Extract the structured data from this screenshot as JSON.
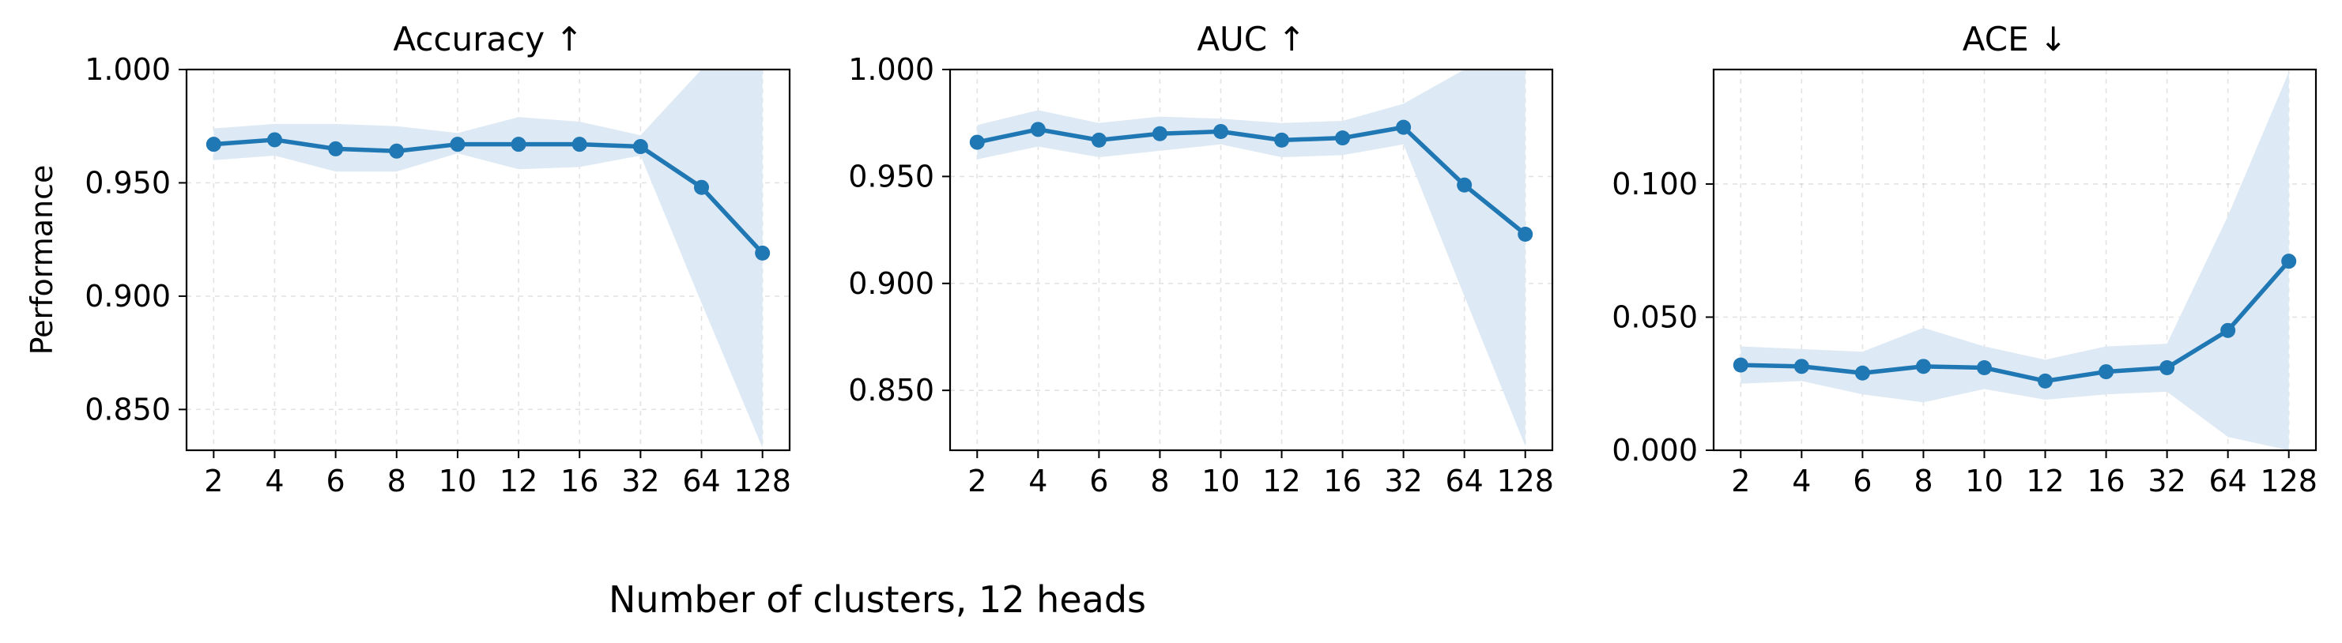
{
  "figure": {
    "xlabel": "Number of clusters, 12 heads"
  },
  "chart_data": [
    {
      "type": "line",
      "title": "Accuracy ↑",
      "ylabel": "Performance",
      "xlabel": "",
      "categories": [
        "2",
        "4",
        "6",
        "8",
        "10",
        "12",
        "16",
        "32",
        "64",
        "128"
      ],
      "ylim": [
        0.832,
        1.0
      ],
      "yticks": [
        0.85,
        0.9,
        0.95,
        1.0
      ],
      "ytick_labels": [
        "0.850",
        "0.900",
        "0.950",
        "1.000"
      ],
      "grid": true,
      "series": [
        {
          "values": [
            0.967,
            0.969,
            0.965,
            0.964,
            0.967,
            0.967,
            0.967,
            0.966,
            0.948,
            0.919
          ],
          "lower": [
            0.96,
            0.962,
            0.955,
            0.955,
            0.963,
            0.956,
            0.957,
            0.962,
            0.897,
            0.833
          ],
          "upper": [
            0.974,
            0.976,
            0.976,
            0.975,
            0.972,
            0.979,
            0.977,
            0.971,
            1.0,
            1.0
          ],
          "color": "#1f77b4",
          "band_color": "#dde9f4"
        }
      ]
    },
    {
      "type": "line",
      "title": "AUC ↑",
      "ylabel": "",
      "xlabel": "",
      "categories": [
        "2",
        "4",
        "6",
        "8",
        "10",
        "12",
        "16",
        "32",
        "64",
        "128"
      ],
      "ylim": [
        0.822,
        1.0
      ],
      "yticks": [
        0.85,
        0.9,
        0.95,
        1.0
      ],
      "ytick_labels": [
        "0.850",
        "0.900",
        "0.950",
        "1.000"
      ],
      "grid": true,
      "series": [
        {
          "values": [
            0.966,
            0.972,
            0.967,
            0.97,
            0.971,
            0.967,
            0.968,
            0.973,
            0.946,
            0.923
          ],
          "lower": [
            0.958,
            0.964,
            0.959,
            0.962,
            0.965,
            0.959,
            0.96,
            0.965,
            0.894,
            0.824
          ],
          "upper": [
            0.974,
            0.981,
            0.975,
            0.978,
            0.977,
            0.975,
            0.976,
            0.984,
            1.0,
            1.0
          ],
          "color": "#1f77b4",
          "band_color": "#dde9f4"
        }
      ]
    },
    {
      "type": "line",
      "title": "ACE ↓",
      "ylabel": "",
      "xlabel": "",
      "categories": [
        "2",
        "4",
        "6",
        "8",
        "10",
        "12",
        "16",
        "32",
        "64",
        "128"
      ],
      "ylim": [
        0.0,
        0.143
      ],
      "yticks": [
        0.0,
        0.05,
        0.1
      ],
      "ytick_labels": [
        "0.000",
        "0.050",
        "0.100"
      ],
      "grid": true,
      "series": [
        {
          "values": [
            0.032,
            0.0315,
            0.029,
            0.0315,
            0.031,
            0.026,
            0.0295,
            0.031,
            0.045,
            0.071
          ],
          "lower": [
            0.025,
            0.026,
            0.021,
            0.018,
            0.023,
            0.019,
            0.021,
            0.022,
            0.005,
            0.0
          ],
          "upper": [
            0.039,
            0.038,
            0.037,
            0.046,
            0.039,
            0.034,
            0.039,
            0.04,
            0.088,
            0.142
          ],
          "color": "#1f77b4",
          "band_color": "#dde9f4"
        }
      ]
    }
  ]
}
